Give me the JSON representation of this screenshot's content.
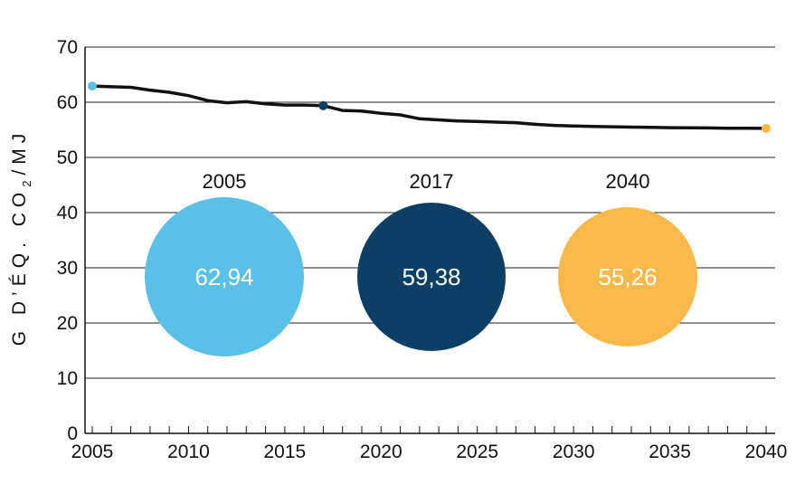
{
  "chart_data": {
    "type": "line",
    "title": "",
    "xlabel": "",
    "ylabel_parts": [
      "G D’ÉQ. CO",
      "2",
      "/MJ"
    ],
    "xlim": [
      2005,
      2040
    ],
    "ylim": [
      0,
      70
    ],
    "x_ticks": [
      "2005",
      "2010",
      "2015",
      "2020",
      "2025",
      "2030",
      "2035",
      "2040"
    ],
    "y_ticks": [
      "0",
      "10",
      "20",
      "30",
      "40",
      "50",
      "60",
      "70"
    ],
    "grid": "horizontal",
    "series": [
      {
        "color": "#111111",
        "x": [
          2005,
          2006,
          2007,
          2008,
          2009,
          2010,
          2011,
          2012,
          2013,
          2014,
          2015,
          2016,
          2017,
          2018,
          2019,
          2020,
          2021,
          2022,
          2023,
          2024,
          2025,
          2026,
          2027,
          2028,
          2029,
          2030,
          2031,
          2032,
          2033,
          2034,
          2035,
          2036,
          2037,
          2038,
          2039,
          2040
        ],
        "y": [
          62.94,
          62.8,
          62.7,
          62.2,
          61.8,
          61.2,
          60.3,
          59.9,
          60.1,
          59.7,
          59.5,
          59.5,
          59.38,
          58.5,
          58.4,
          58.0,
          57.7,
          57.0,
          56.8,
          56.6,
          56.5,
          56.4,
          56.3,
          56.0,
          55.8,
          55.7,
          55.6,
          55.55,
          55.5,
          55.45,
          55.4,
          55.38,
          55.35,
          55.3,
          55.28,
          55.26
        ]
      }
    ],
    "markers": [
      {
        "x": 2005,
        "y": 62.94,
        "color": "#5BC0E7"
      },
      {
        "x": 2017,
        "y": 59.38,
        "color": "#0D3F66"
      },
      {
        "x": 2040,
        "y": 55.26,
        "color": "#F9B94A"
      }
    ],
    "annotations": [
      {
        "year": "2005",
        "value": "62,94",
        "color": "#5BC0E7"
      },
      {
        "year": "2017",
        "value": "59,38",
        "color": "#0D3F66"
      },
      {
        "year": "2040",
        "value": "55,26",
        "color": "#F9B94A"
      }
    ]
  }
}
